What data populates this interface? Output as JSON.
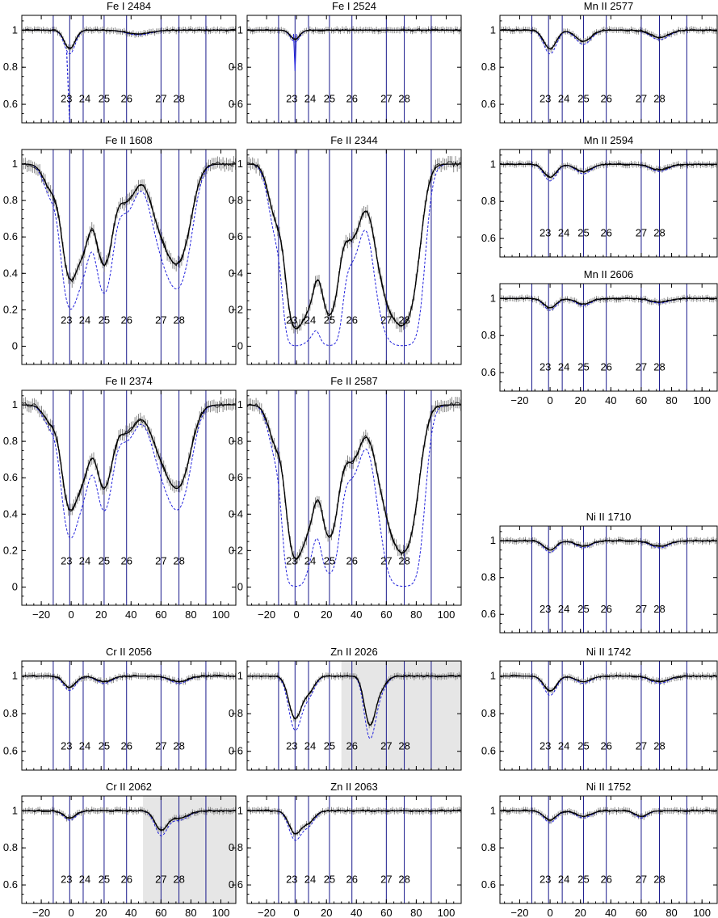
{
  "chart_data": {
    "type": "line",
    "title": "",
    "xlabel": "",
    "ylabel": "",
    "x_ticks": [
      -20,
      0,
      20,
      40,
      60,
      80,
      100
    ],
    "component_labels": [
      "23",
      "24",
      "25",
      "26",
      "27",
      "28"
    ],
    "component_velocities": [
      -1,
      8,
      22,
      37,
      60,
      72
    ],
    "boundary_velocities": [
      -12,
      90
    ],
    "colors": {
      "data": "#000000",
      "model": "#000000",
      "dashed": "#2222dd",
      "vline": "#1a1a8c",
      "errorbar": "#888888",
      "shade": "#e6e6e6"
    },
    "panels": [
      {
        "name": "Fe I 2484",
        "ylim": [
          0.5,
          1.08
        ],
        "yticks": [
          0.6,
          0.8,
          1
        ],
        "xticks": false,
        "components": [
          {
            "v": -1,
            "depth": 0.1,
            "w": 3.5
          },
          {
            "v": 45,
            "depth": 0.02,
            "w": 8
          }
        ],
        "dashed_spike": true
      },
      {
        "name": "Fe I 2524",
        "ylim": [
          0.5,
          1.08
        ],
        "yticks": [
          0.6,
          0.8,
          1
        ],
        "xticks": false,
        "components": [
          {
            "v": -1,
            "depth": 0.05,
            "w": 3
          }
        ],
        "dashed_spike_small": true
      },
      {
        "name": "Mn II 2577",
        "ylim": [
          0.5,
          1.08
        ],
        "yticks": [
          0.6,
          0.8,
          1
        ],
        "xticks": false,
        "components": [
          {
            "v": 0,
            "depth": 0.1,
            "w": 4
          },
          {
            "v": 22,
            "depth": 0.06,
            "w": 5
          },
          {
            "v": 72,
            "depth": 0.04,
            "w": 6
          }
        ]
      },
      {
        "name": "Fe II 1608",
        "ylim": [
          -0.1,
          1.08
        ],
        "yticks": [
          0,
          0.2,
          0.4,
          0.6,
          0.8,
          1
        ],
        "xticks": false,
        "components": [
          {
            "v": -13,
            "depth": 0.14,
            "w": 5
          },
          {
            "v": -1,
            "depth": 0.6,
            "w": 4.5
          },
          {
            "v": 8,
            "depth": 0.42,
            "w": 4.5
          },
          {
            "v": 22,
            "depth": 0.55,
            "w": 5
          },
          {
            "v": 37,
            "depth": 0.2,
            "w": 6
          },
          {
            "v": 60,
            "depth": 0.3,
            "w": 7
          },
          {
            "v": 72,
            "depth": 0.5,
            "w": 7
          }
        ]
      },
      {
        "name": "Fe II 2344",
        "ylim": [
          -0.1,
          1.08
        ],
        "yticks": [
          0,
          0.2,
          0.4,
          0.6,
          0.8,
          1
        ],
        "xticks": false,
        "components": [
          {
            "v": -13,
            "depth": 0.3,
            "w": 5
          },
          {
            "v": -1,
            "depth": 0.88,
            "w": 4.5
          },
          {
            "v": 8,
            "depth": 0.72,
            "w": 4.5
          },
          {
            "v": 22,
            "depth": 0.82,
            "w": 5
          },
          {
            "v": 37,
            "depth": 0.4,
            "w": 6
          },
          {
            "v": 60,
            "depth": 0.62,
            "w": 7
          },
          {
            "v": 72,
            "depth": 0.85,
            "w": 7
          }
        ]
      },
      {
        "name": "Mn II 2594",
        "ylim": [
          0.5,
          1.08
        ],
        "yticks": [
          0.6,
          0.8,
          1
        ],
        "xticks": false,
        "components": [
          {
            "v": 0,
            "depth": 0.07,
            "w": 4
          },
          {
            "v": 22,
            "depth": 0.04,
            "w": 5
          },
          {
            "v": 72,
            "depth": 0.03,
            "w": 6
          }
        ]
      },
      {
        "name": "Mn II 2606",
        "ylim": [
          0.5,
          1.08
        ],
        "yticks": [
          0.6,
          0.8,
          1
        ],
        "xticks": true,
        "components": [
          {
            "v": 0,
            "depth": 0.05,
            "w": 4
          },
          {
            "v": 22,
            "depth": 0.03,
            "w": 5
          },
          {
            "v": 72,
            "depth": 0.02,
            "w": 6
          }
        ]
      },
      {
        "name": "Fe II 2374",
        "ylim": [
          -0.1,
          1.08
        ],
        "yticks": [
          0,
          0.2,
          0.4,
          0.6,
          0.8,
          1
        ],
        "xticks": true,
        "components": [
          {
            "v": -13,
            "depth": 0.1,
            "w": 5
          },
          {
            "v": -1,
            "depth": 0.55,
            "w": 4.5
          },
          {
            "v": 8,
            "depth": 0.35,
            "w": 4.5
          },
          {
            "v": 22,
            "depth": 0.45,
            "w": 5
          },
          {
            "v": 37,
            "depth": 0.15,
            "w": 6
          },
          {
            "v": 60,
            "depth": 0.22,
            "w": 7
          },
          {
            "v": 72,
            "depth": 0.42,
            "w": 7
          }
        ]
      },
      {
        "name": "Fe II 2587",
        "ylim": [
          -0.1,
          1.08
        ],
        "yticks": [
          0,
          0.2,
          0.4,
          0.6,
          0.8,
          1
        ],
        "xticks": true,
        "components": [
          {
            "v": -13,
            "depth": 0.22,
            "w": 5
          },
          {
            "v": -1,
            "depth": 0.82,
            "w": 4.5
          },
          {
            "v": 8,
            "depth": 0.6,
            "w": 4.5
          },
          {
            "v": 22,
            "depth": 0.72,
            "w": 5
          },
          {
            "v": 37,
            "depth": 0.3,
            "w": 6
          },
          {
            "v": 60,
            "depth": 0.45,
            "w": 7
          },
          {
            "v": 72,
            "depth": 0.78,
            "w": 7
          }
        ]
      },
      {
        "name": "Ni II 1710",
        "ylim": [
          0.5,
          1.08
        ],
        "yticks": [
          0.6,
          0.8,
          1
        ],
        "xticks": false,
        "components": [
          {
            "v": 0,
            "depth": 0.05,
            "w": 4
          },
          {
            "v": 22,
            "depth": 0.03,
            "w": 5
          },
          {
            "v": 72,
            "depth": 0.03,
            "w": 6
          }
        ]
      },
      {
        "name": "Cr II 2056",
        "ylim": [
          0.5,
          1.08
        ],
        "yticks": [
          0.6,
          0.8,
          1
        ],
        "xticks": false,
        "components": [
          {
            "v": -1,
            "depth": 0.06,
            "w": 4
          },
          {
            "v": 22,
            "depth": 0.03,
            "w": 5
          },
          {
            "v": 72,
            "depth": 0.03,
            "w": 6
          }
        ]
      },
      {
        "name": "Zn II 2026",
        "ylim": [
          0.5,
          1.08
        ],
        "yticks": [
          0.6,
          0.8,
          1
        ],
        "xticks": false,
        "shade": [
          30,
          110
        ],
        "components": [
          {
            "v": -1,
            "depth": 0.22,
            "w": 4
          },
          {
            "v": 8,
            "depth": 0.08,
            "w": 4
          },
          {
            "v": 49,
            "depth": 0.25,
            "w": 3.5
          },
          {
            "v": 56,
            "depth": 0.06,
            "w": 4
          }
        ]
      },
      {
        "name": "Ni II 1742",
        "ylim": [
          0.5,
          1.08
        ],
        "yticks": [
          0.6,
          0.8,
          1
        ],
        "xticks": false,
        "components": [
          {
            "v": 0,
            "depth": 0.08,
            "w": 4
          },
          {
            "v": 22,
            "depth": 0.03,
            "w": 5
          },
          {
            "v": 72,
            "depth": 0.03,
            "w": 6
          }
        ]
      },
      {
        "name": "Cr II 2062",
        "ylim": [
          0.5,
          1.08
        ],
        "yticks": [
          0.6,
          0.8,
          1
        ],
        "xticks": true,
        "shade": [
          48,
          110
        ],
        "components": [
          {
            "v": -1,
            "depth": 0.04,
            "w": 4
          },
          {
            "v": 60,
            "depth": 0.1,
            "w": 4
          },
          {
            "v": 72,
            "depth": 0.04,
            "w": 6
          }
        ]
      },
      {
        "name": "Zn II 2063",
        "ylim": [
          0.5,
          1.08
        ],
        "yticks": [
          0.6,
          0.8,
          1
        ],
        "xticks": true,
        "components": [
          {
            "v": -1,
            "depth": 0.12,
            "w": 4
          },
          {
            "v": 8,
            "depth": 0.06,
            "w": 4
          }
        ]
      },
      {
        "name": "Ni II 1752",
        "ylim": [
          0.5,
          1.08
        ],
        "yticks": [
          0.6,
          0.8,
          1
        ],
        "xticks": true,
        "components": [
          {
            "v": 0,
            "depth": 0.05,
            "w": 4
          },
          {
            "v": 22,
            "depth": 0.03,
            "w": 5
          },
          {
            "v": 60,
            "depth": 0.03,
            "w": 4
          }
        ]
      }
    ]
  }
}
